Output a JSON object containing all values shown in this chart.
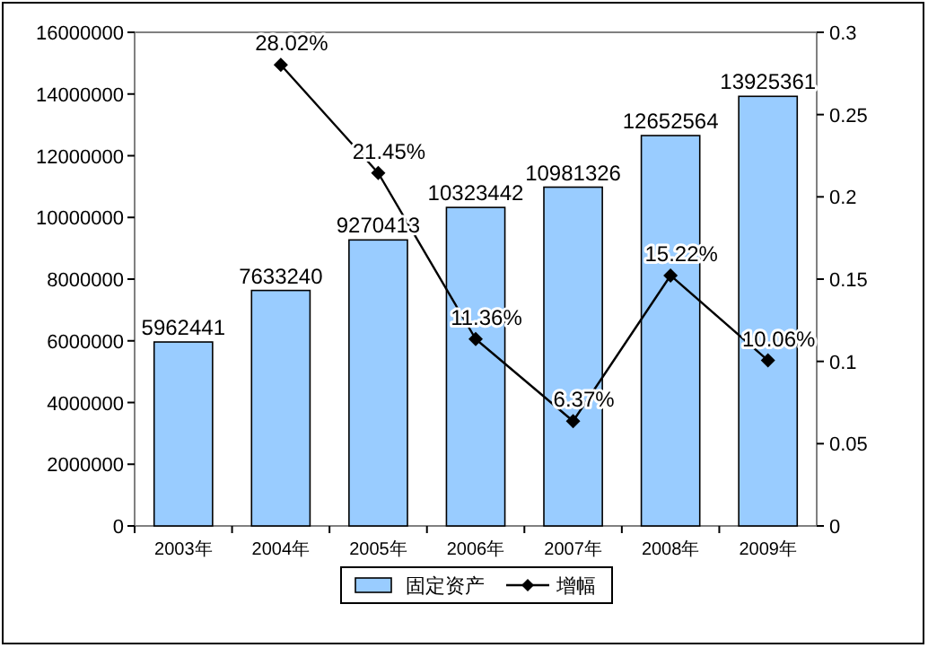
{
  "chart_data": {
    "type": "bar",
    "categories": [
      "2003年",
      "2004年",
      "2005年",
      "2006年",
      "2007年",
      "2008年",
      "2009年"
    ],
    "series": [
      {
        "name": "固定资产",
        "color": "#99ccff",
        "values": [
          5962441,
          7633240,
          9270413,
          10323442,
          10981326,
          12652564,
          13925361
        ]
      },
      {
        "name": "增幅",
        "type": "line",
        "axis": "y2",
        "color": "#000000",
        "marker": "diamond",
        "values": [
          null,
          0.2802,
          0.2145,
          0.1136,
          0.0637,
          0.1522,
          0.1006
        ],
        "value_labels": [
          null,
          "28.02%",
          "21.45%",
          "11.36%",
          "6.37%",
          "15.22%",
          "10.06%"
        ]
      }
    ],
    "ylim": [
      0,
      16000000
    ],
    "yticks": [
      0,
      2000000,
      4000000,
      6000000,
      8000000,
      10000000,
      12000000,
      14000000,
      16000000
    ],
    "y2lim": [
      0,
      0.3
    ],
    "y2ticks": [
      0,
      0.05,
      0.1,
      0.15,
      0.2,
      0.25,
      0.3
    ],
    "data_labels": true,
    "legend": "bottom"
  }
}
